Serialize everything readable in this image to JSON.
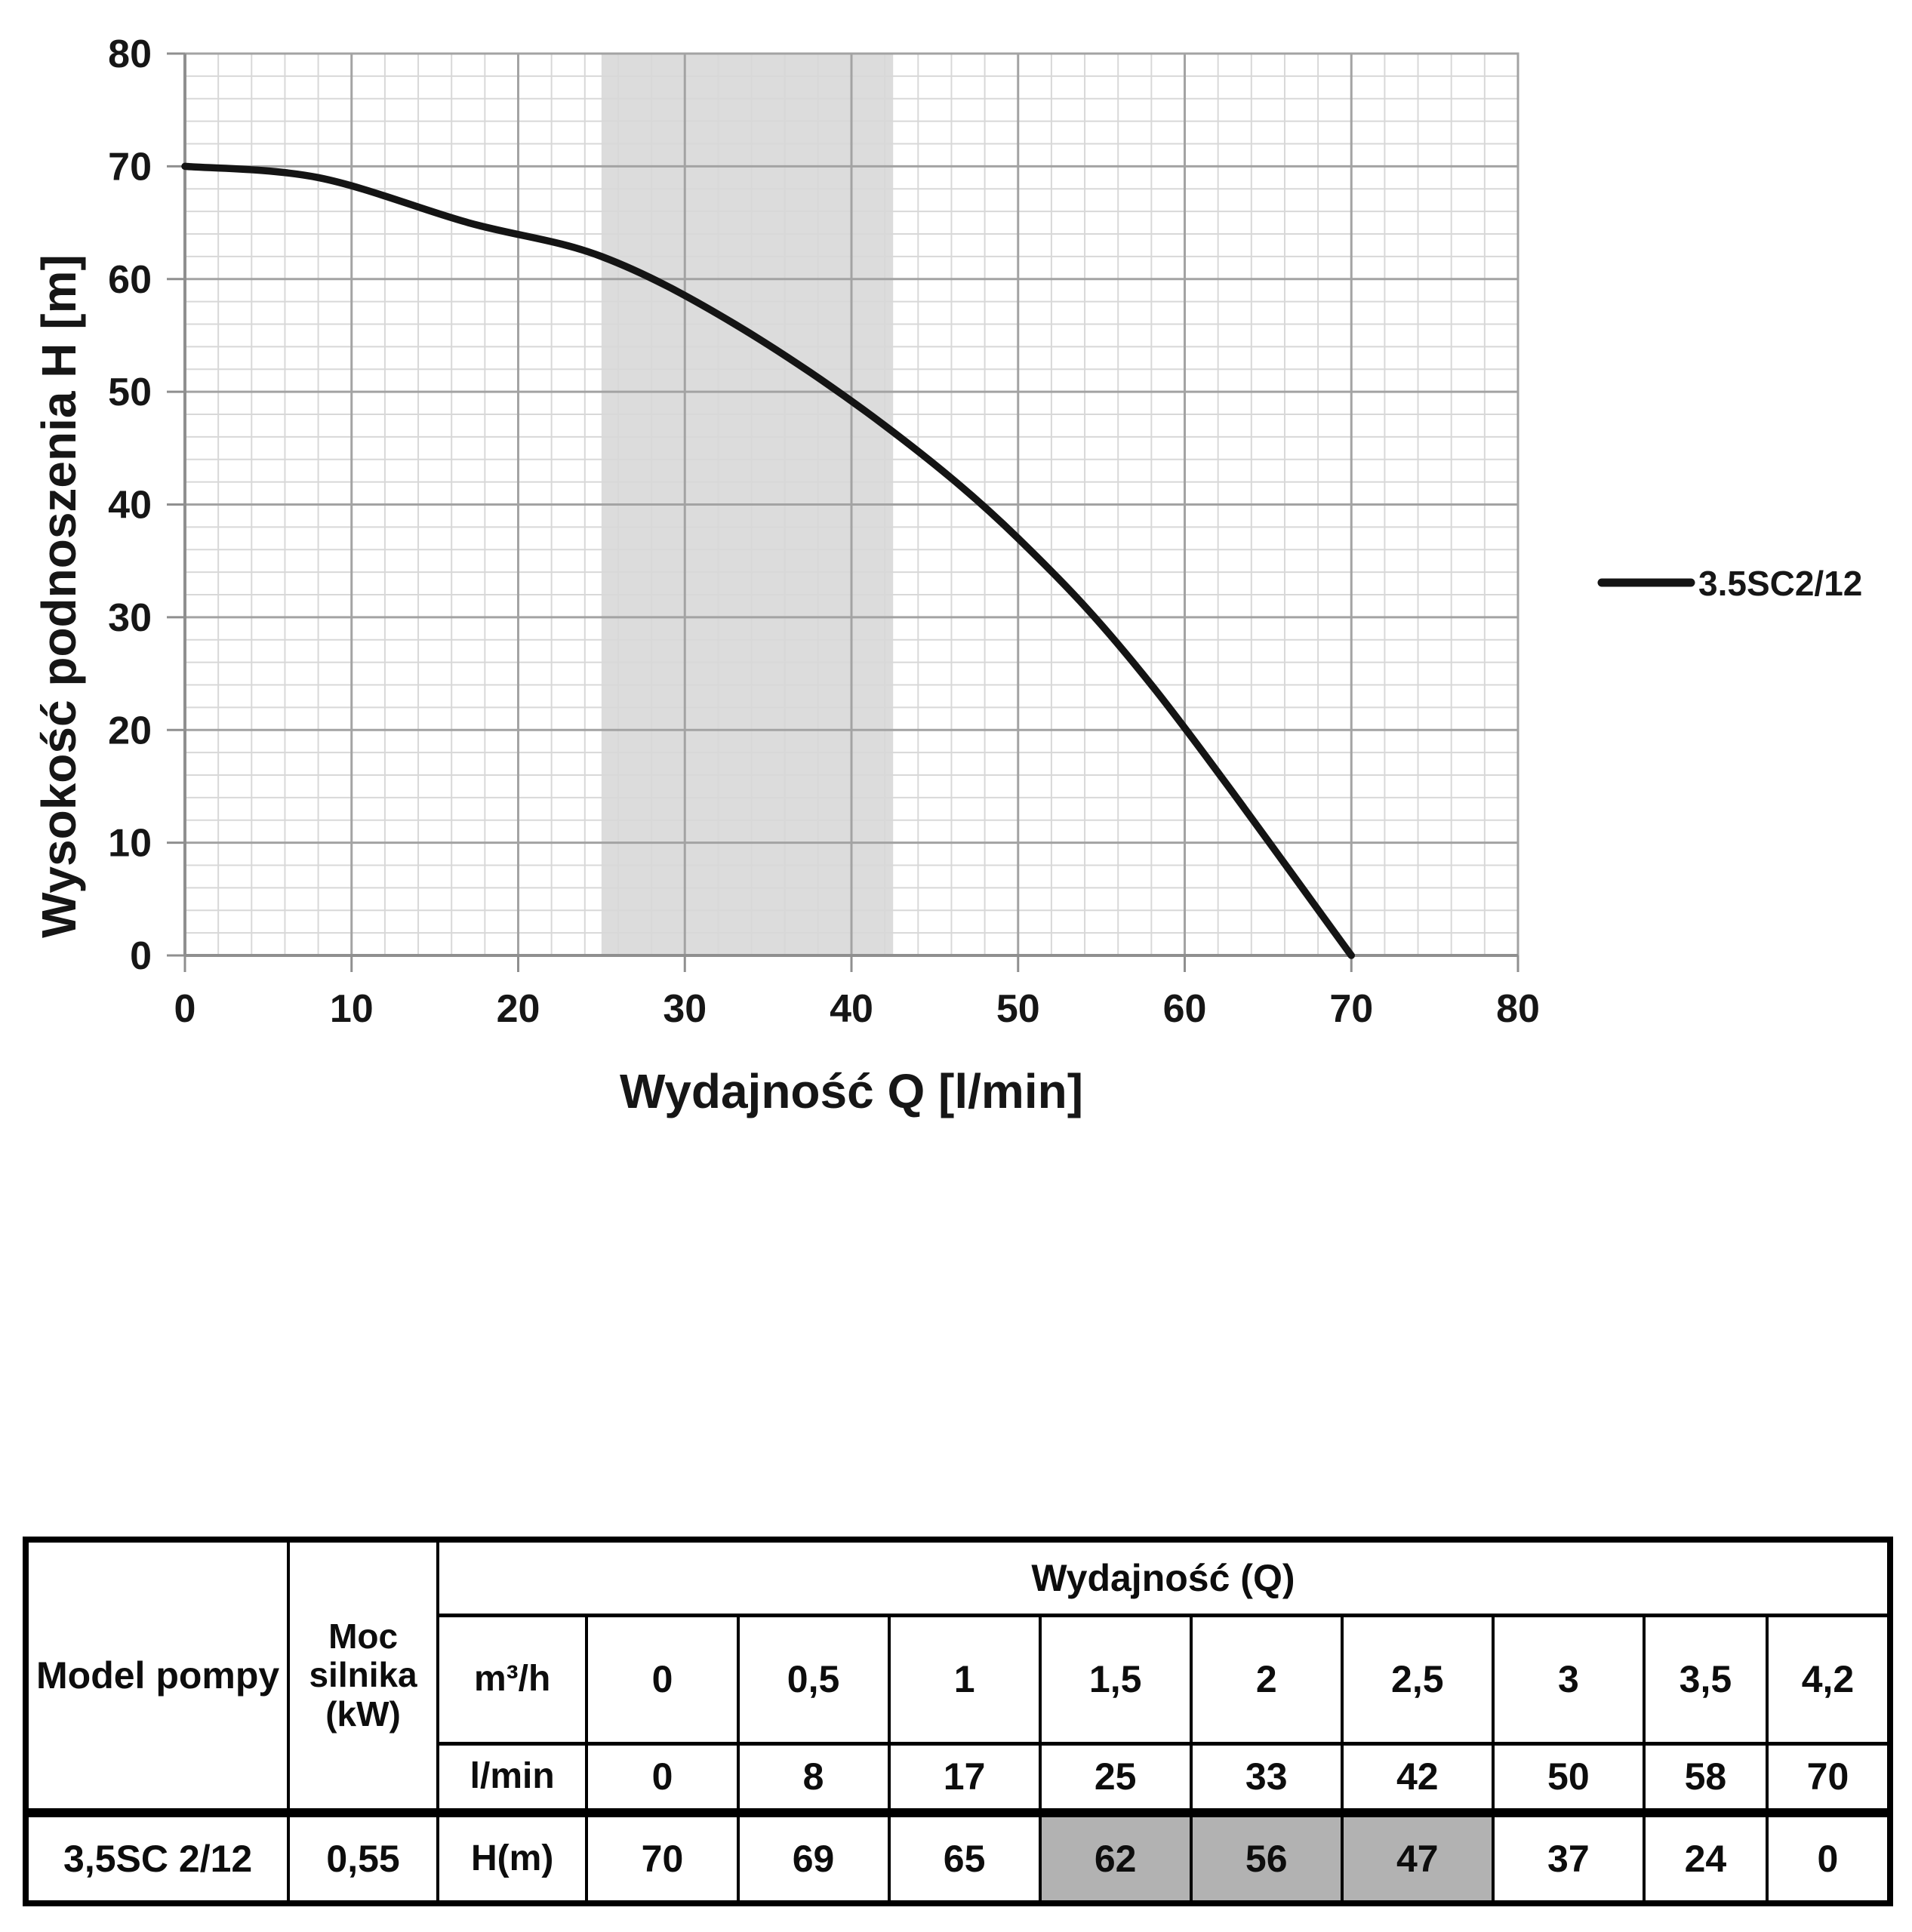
{
  "chart_data": {
    "type": "line",
    "title": "",
    "xlabel": "Wydajność Q [l/min]",
    "ylabel": "Wysokość podnoszenia H [m]",
    "xlim": [
      0,
      80
    ],
    "ylim": [
      0,
      80
    ],
    "x_ticks": [
      0,
      10,
      20,
      30,
      40,
      50,
      60,
      70,
      80
    ],
    "y_ticks": [
      0,
      10,
      20,
      30,
      40,
      50,
      60,
      70,
      80
    ],
    "x_minor_step": 2,
    "y_minor_step": 2,
    "grid": true,
    "legend_position": "right",
    "band": {
      "x0": 25,
      "x1": 42.5,
      "color": "#dcdcdc"
    },
    "colors": {
      "curve": "#141414",
      "grid_minor": "#d8d8d8",
      "grid_major": "#a3a3a3",
      "axis": "#8f8f8f",
      "text": "#161616"
    },
    "series": [
      {
        "name": "3.5SC2/12",
        "points": [
          [
            0,
            70
          ],
          [
            8,
            69
          ],
          [
            17,
            65
          ],
          [
            25,
            62
          ],
          [
            33,
            56
          ],
          [
            42,
            47
          ],
          [
            50,
            37
          ],
          [
            58,
            24
          ],
          [
            70,
            0
          ]
        ]
      }
    ]
  },
  "legend": {
    "label": "3.5SC2/12"
  },
  "table": {
    "header_model": "Model pompy",
    "header_power": "Moc silnika (kW)",
    "header_q": "Wydajność (Q)",
    "units": {
      "m3h": "m³/h",
      "lmin": "l/min",
      "h": "H(m)"
    },
    "model": "3,5SC 2/12",
    "power": "0,55",
    "q_m3h": [
      "0",
      "0,5",
      "1",
      "1,5",
      "2",
      "2,5",
      "3",
      "3,5",
      "4,2"
    ],
    "q_lmin": [
      "0",
      "8",
      "17",
      "25",
      "33",
      "42",
      "50",
      "58",
      "70"
    ],
    "h_m": [
      "70",
      "69",
      "65",
      "62",
      "56",
      "47",
      "37",
      "24",
      "0"
    ],
    "highlight_color": "#b2b2b2"
  }
}
